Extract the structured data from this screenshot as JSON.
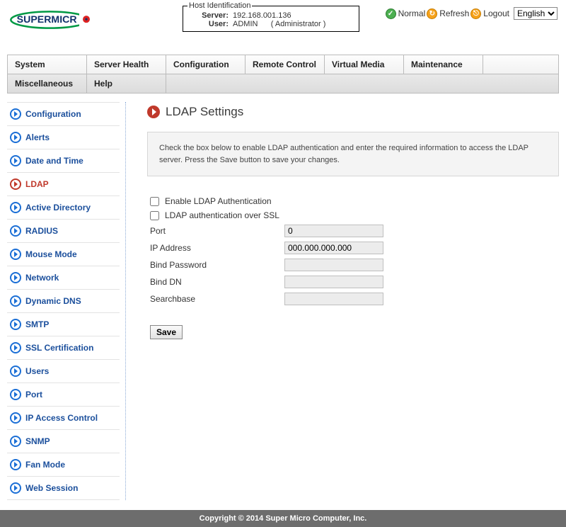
{
  "logo": {
    "text_left": "SUPERMICR",
    "accent_color": "#009944",
    "dot_color": "#d22"
  },
  "host_identification": {
    "legend": "Host Identification",
    "server_label": "Server:",
    "server_value": "192.168.001.136",
    "user_label": "User:",
    "user_value": "ADMIN",
    "user_role": "( Administrator )"
  },
  "topbar": {
    "normal": "Normal",
    "refresh": "Refresh",
    "logout": "Logout",
    "language": "English"
  },
  "menu": {
    "row1": [
      "System",
      "Server Health",
      "Configuration",
      "Remote Control",
      "Virtual Media",
      "Maintenance"
    ],
    "row2": [
      "Miscellaneous",
      "Help"
    ]
  },
  "sidebar": {
    "items": [
      {
        "label": "Configuration",
        "active": false
      },
      {
        "label": "Alerts",
        "active": false
      },
      {
        "label": "Date and Time",
        "active": false
      },
      {
        "label": "LDAP",
        "active": true
      },
      {
        "label": "Active Directory",
        "active": false
      },
      {
        "label": "RADIUS",
        "active": false
      },
      {
        "label": "Mouse Mode",
        "active": false
      },
      {
        "label": "Network",
        "active": false
      },
      {
        "label": "Dynamic DNS",
        "active": false
      },
      {
        "label": "SMTP",
        "active": false
      },
      {
        "label": "SSL Certification",
        "active": false
      },
      {
        "label": "Users",
        "active": false
      },
      {
        "label": "Port",
        "active": false
      },
      {
        "label": "IP Access Control",
        "active": false
      },
      {
        "label": "SNMP",
        "active": false
      },
      {
        "label": "Fan Mode",
        "active": false
      },
      {
        "label": "Web Session",
        "active": false
      }
    ]
  },
  "page": {
    "title": "LDAP Settings",
    "help_text": "Check the box below to enable LDAP authentication and enter the required information to access the LDAP server. Press the Save button to save your changes.",
    "chk_enable": "Enable LDAP Authentication",
    "chk_ssl": "LDAP authentication over SSL",
    "fields": {
      "port_label": "Port",
      "port_value": "0",
      "ip_label": "IP Address",
      "ip_value": "000.000.000.000",
      "bindpw_label": "Bind Password",
      "bindpw_value": "",
      "binddn_label": "Bind DN",
      "binddn_value": "",
      "search_label": "Searchbase",
      "search_value": ""
    },
    "save": "Save"
  },
  "footer": "Copyright © 2014 Super Micro Computer, Inc."
}
